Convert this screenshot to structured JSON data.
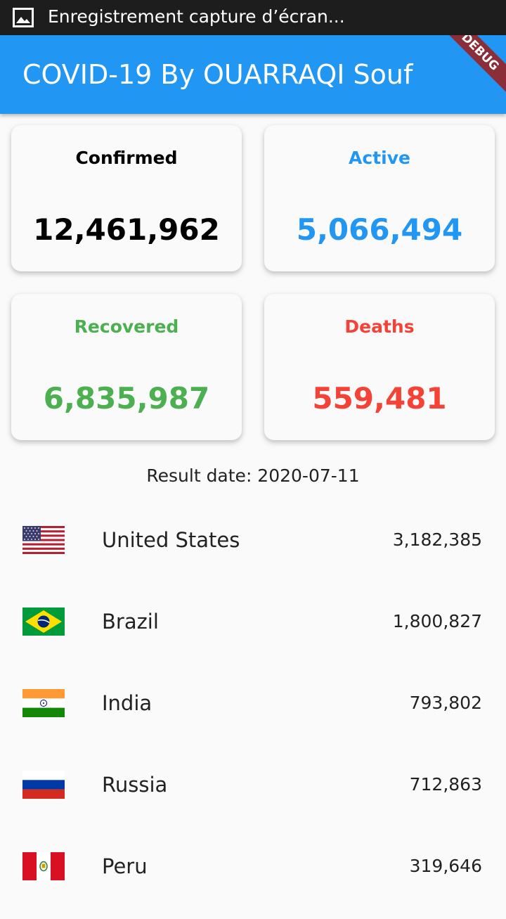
{
  "status_bar": {
    "notification_text": "Enregistrement capture d’écran..."
  },
  "app_bar": {
    "title": "COVID-19 By OUARRAQI Souf",
    "debug_banner": "DEBUG"
  },
  "stats": {
    "confirmed": {
      "label": "Confirmed",
      "value": "12,461,962",
      "color": "#000000"
    },
    "active": {
      "label": "Active",
      "value": "5,066,494",
      "color": "#2196f3"
    },
    "recovered": {
      "label": "Recovered",
      "value": "6,835,987",
      "color": "#4caf50"
    },
    "deaths": {
      "label": "Deaths",
      "value": "559,481",
      "color": "#f44336"
    }
  },
  "result_date": "Result date: 2020-07-11",
  "countries": [
    {
      "name": "United States",
      "count": "3,182,385",
      "flag": "us-flag"
    },
    {
      "name": "Brazil",
      "count": "1,800,827",
      "flag": "brazil-flag"
    },
    {
      "name": "India",
      "count": "793,802",
      "flag": "india-flag"
    },
    {
      "name": "Russia",
      "count": "712,863",
      "flag": "russia-flag"
    },
    {
      "name": "Peru",
      "count": "319,646",
      "flag": "peru-flag"
    }
  ]
}
